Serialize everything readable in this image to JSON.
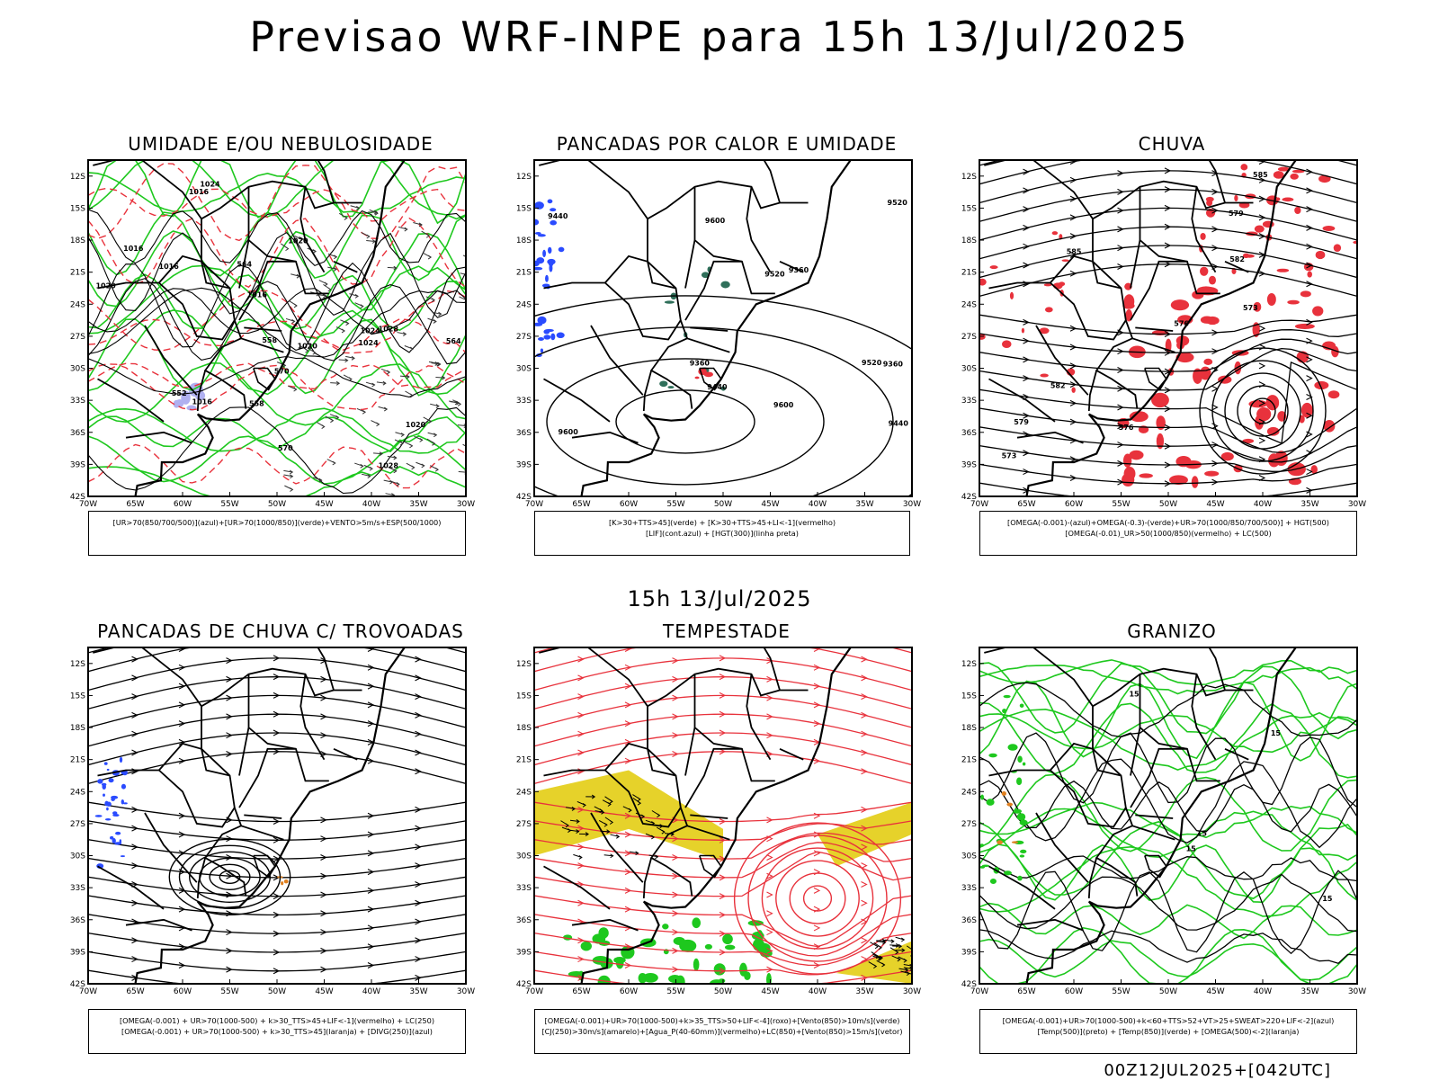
{
  "title": "Previsao WRF-INPE  para 15h 13/Jul/2025",
  "subtitle": "15h 13/Jul/2025",
  "footer": "00Z12JUL2025+[042UTC]",
  "colors": {
    "red": "#e8323c",
    "green": "#1ec81e",
    "blue": "#2a4bff",
    "yellow": "#e6d22a",
    "orange": "#e08020",
    "lavender": "#b0b0f0",
    "black": "#000000"
  },
  "axes": {
    "lat_ticks": [
      "12S",
      "15S",
      "18S",
      "21S",
      "24S",
      "27S",
      "30S",
      "33S",
      "36S",
      "39S",
      "42S"
    ],
    "lon_ticks": [
      "70W",
      "65W",
      "60W",
      "55W",
      "50W",
      "45W",
      "40W",
      "35W",
      "30W"
    ]
  },
  "chart_data": [
    {
      "type": "map",
      "title": "UMIDADE E/OU NEBULOSIDADE",
      "legend": [
        "[UR>70(850/700/500)](azul)+[UR>70(1000/850)](verde)+VENTO>5m/s+ESP(500/1000)"
      ],
      "contour_labels": [
        "1016",
        "1016",
        "1016",
        "1016",
        "1016",
        "1020",
        "1020",
        "1020",
        "1020",
        "1024",
        "1024",
        "1024",
        "1028",
        "1028",
        "570",
        "570",
        "564",
        "558",
        "552",
        "558",
        "564"
      ]
    },
    {
      "type": "map",
      "title": "PANCADAS POR CALOR E UMIDADE",
      "legend": [
        "[K>30+TTS>45](verde) + [K>30+TTS>45+LI<-1](vermelho)",
        "[LIF](cont.azul) + [HGT(300)](linha preta)"
      ],
      "contour_labels": [
        "9600",
        "9600",
        "9600",
        "9520",
        "9520",
        "9520",
        "9440",
        "9440",
        "9440",
        "9360",
        "9360",
        "9360"
      ]
    },
    {
      "type": "map",
      "title": "CHUVA",
      "legend": [
        "[OMEGA(-0.001)-(azul)+OMEGA(-0.3)-(verde)+UR>70(1000/850/700/500)] + HGT(500)",
        "[OMEGA(-0.01)_UR>50(1000/850)(vermelho) + LC(500)"
      ],
      "contour_labels": [
        "585",
        "585",
        "582",
        "579",
        "576",
        "573",
        "573",
        "576",
        "579",
        "582"
      ]
    },
    {
      "type": "map",
      "title": "PANCADAS DE CHUVA C/ TROVOADAS",
      "legend": [
        "[OMEGA(-0.001) + UR>70(1000-500) + k>30_TTS>45+LIF<-1](vermelho) + LC(250)",
        "[OMEGA(-0.001) + UR>70(1000-500) + k>30_TTS>45](laranja) + [DIVG(250)](azul)"
      ],
      "contour_labels": []
    },
    {
      "type": "map",
      "title": "TEMPESTADE",
      "legend": [
        "[OMEGA(-0.001)+UR>70(1000-500)+k>35_TTS>50+LIF<-4](roxo)+[Vento(850)>10m/s](verde)",
        "[CJ(250)>30m/s](amarelo)+[Agua_P(40-60mm)](vermelho)+LC(850)+[Vento(850)>15m/s](vetor)"
      ],
      "contour_labels": []
    },
    {
      "type": "map",
      "title": "GRANIZO",
      "legend": [
        "[OMEGA(-0.001)+UR>70(1000-500)+k<60+TTS>52+VT>25+SWEAT>220+LIF<-2](azul)",
        "[Temp(500)](preto) + [Temp(850)](verde) + [OMEGA(500)<-2](laranja)"
      ],
      "contour_labels": [
        "15",
        "15",
        "15",
        "15",
        "15"
      ]
    }
  ]
}
